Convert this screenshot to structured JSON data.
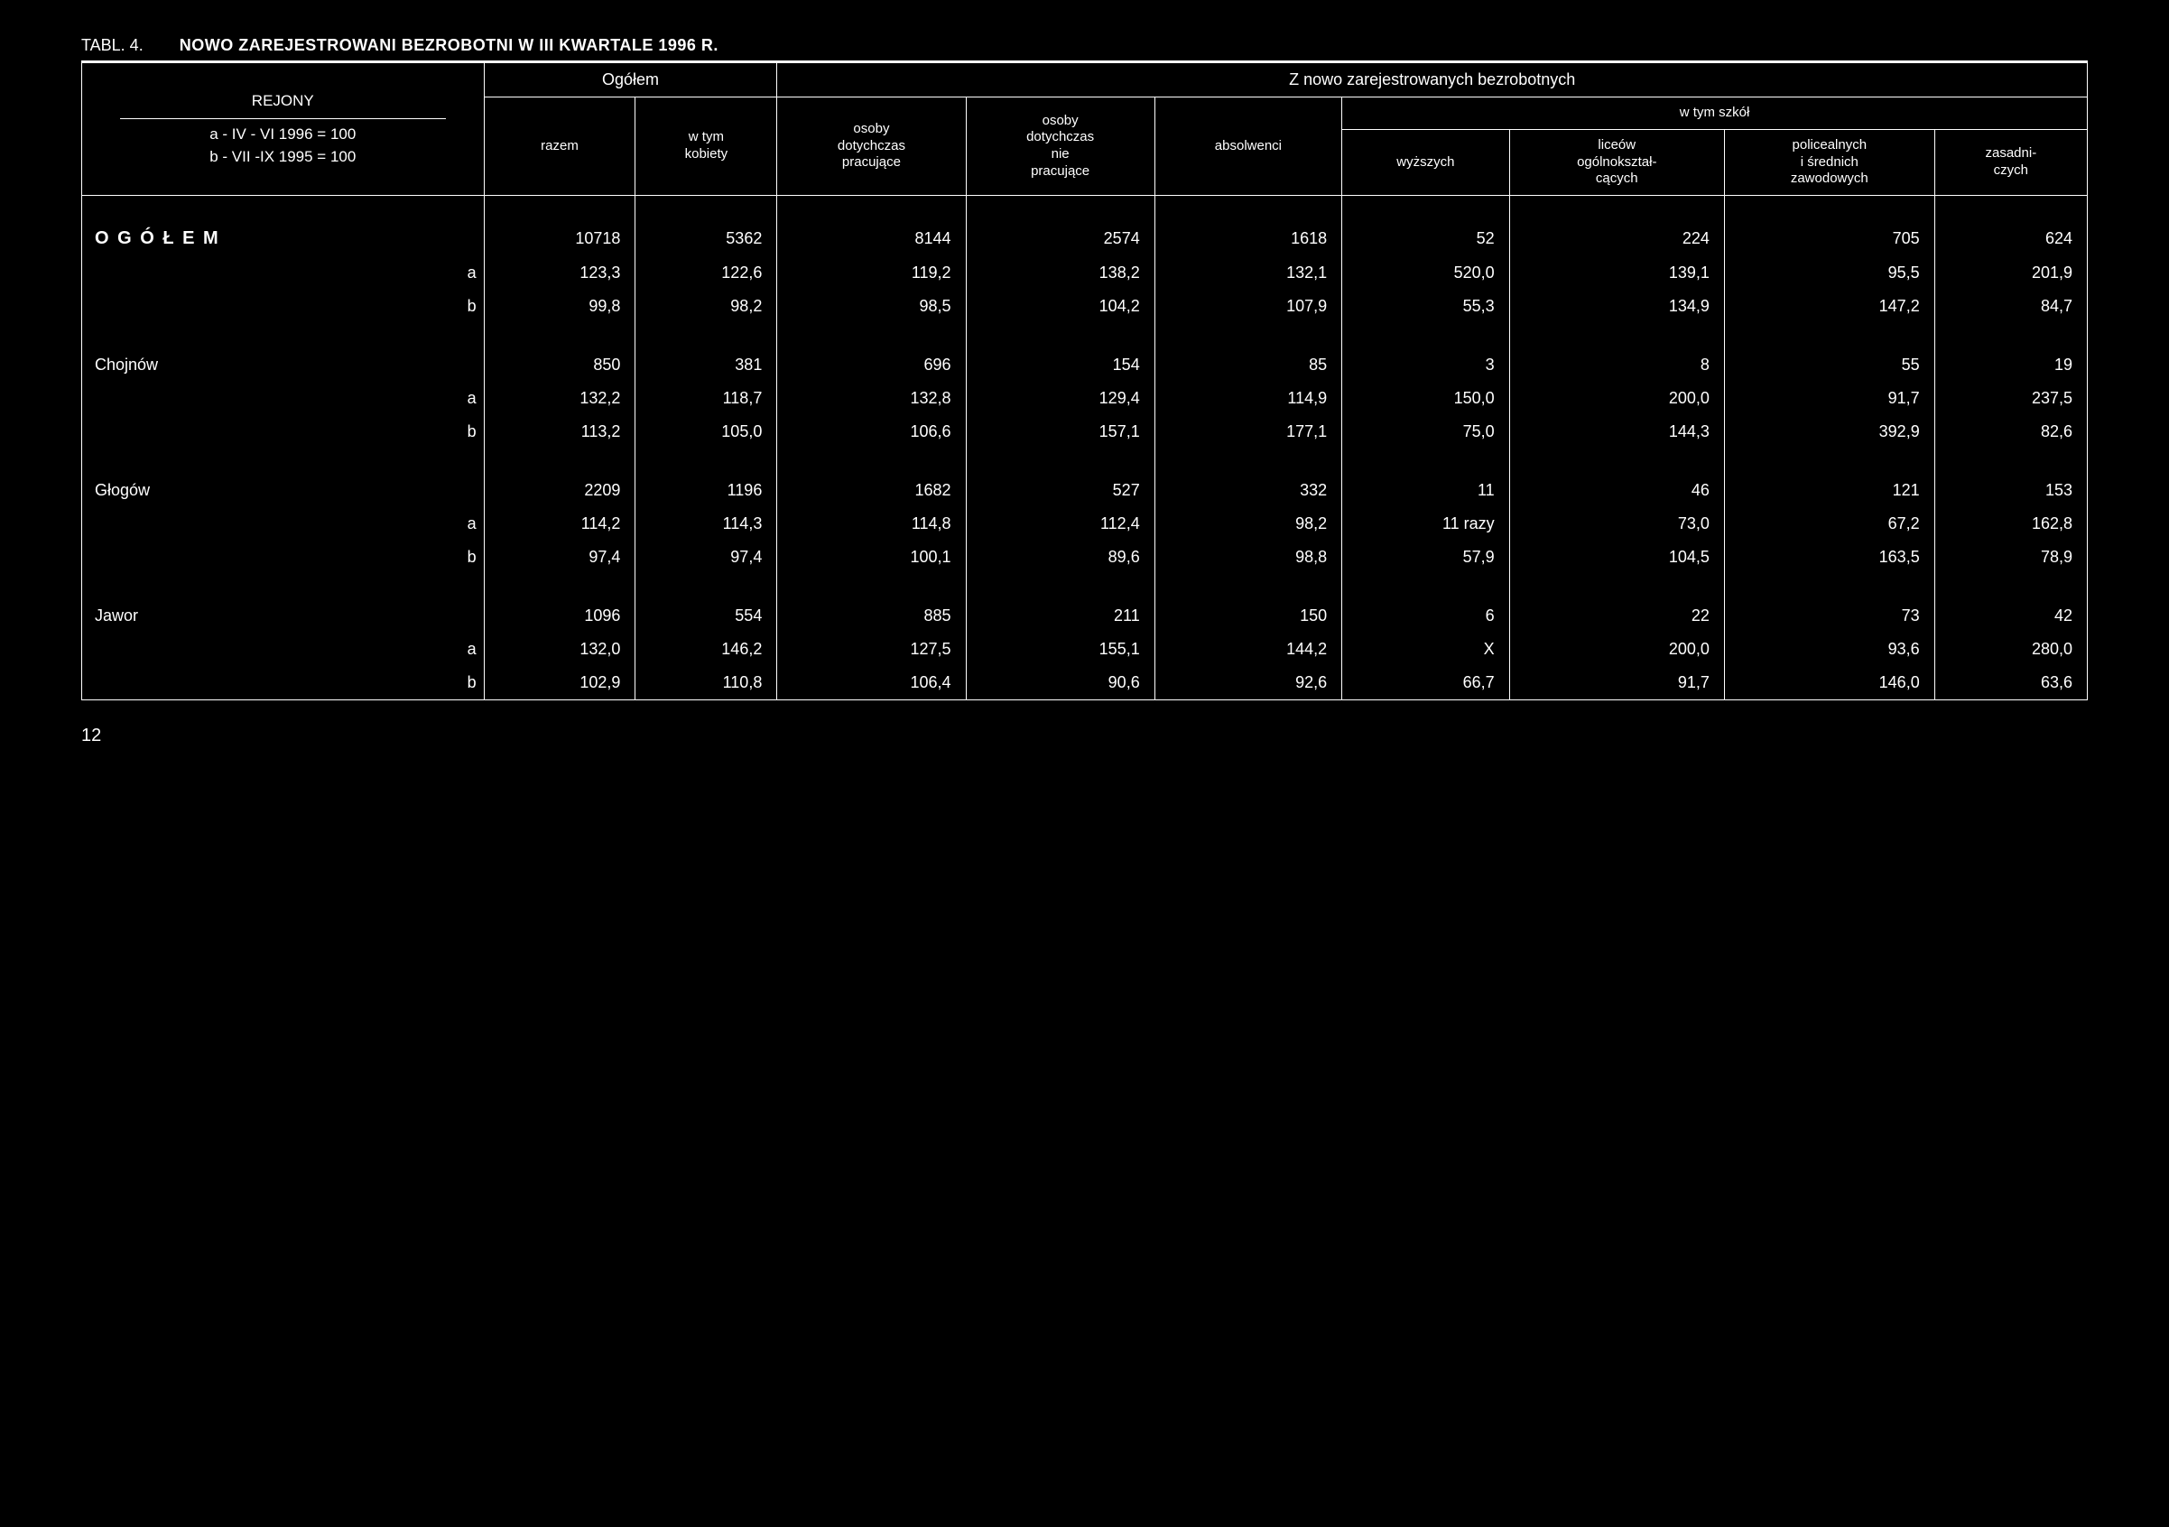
{
  "meta": {
    "table_label": "TABL. 4.",
    "table_title": "NOWO ZAREJESTROWANI BEZROBOTNI W III KWARTALE 1996 R.",
    "page_number": "12"
  },
  "header": {
    "rejony_label": "REJONY",
    "rejony_sub_a": "a - IV - VI 1996 = 100",
    "rejony_sub_b": "b - VII -IX 1995 = 100",
    "ogolem": "Ogółem",
    "z_nowo": "Z nowo zarejestrowanych bezrobotnych",
    "razem": "razem",
    "w_tym_kobiety": "w tym\nkobiety",
    "osoby_dot_prac": "osoby\ndotychczas\npracujące",
    "osoby_dot_nie_prac": "osoby\ndotychczas\nnie\npracujące",
    "absolwenci": "absolwenci",
    "w_tym_szkol": "w tym szkół",
    "wyzszych": "wyższych",
    "liceow": "liceów\nogólnokształ-\ncących",
    "policealnych": "policealnych\ni średnich\nzawodowych",
    "zasadniczych": "zasadni-\nczych"
  },
  "rows": [
    {
      "label": "O G Ó Ł E M",
      "bold": true,
      "main": [
        "10718",
        "5362",
        "8144",
        "2574",
        "1618",
        "52",
        "224",
        "705",
        "624"
      ],
      "a": [
        "123,3",
        "122,6",
        "119,2",
        "138,2",
        "132,1",
        "520,0",
        "139,1",
        "95,5",
        "201,9"
      ],
      "b": [
        "99,8",
        "98,2",
        "98,5",
        "104,2",
        "107,9",
        "55,3",
        "134,9",
        "147,2",
        "84,7"
      ]
    },
    {
      "label": "Chojnów",
      "main": [
        "850",
        "381",
        "696",
        "154",
        "85",
        "3",
        "8",
        "55",
        "19"
      ],
      "a": [
        "132,2",
        "118,7",
        "132,8",
        "129,4",
        "114,9",
        "150,0",
        "200,0",
        "91,7",
        "237,5"
      ],
      "b": [
        "113,2",
        "105,0",
        "106,6",
        "157,1",
        "177,1",
        "75,0",
        "144,3",
        "392,9",
        "82,6"
      ]
    },
    {
      "label": "Głogów",
      "main": [
        "2209",
        "1196",
        "1682",
        "527",
        "332",
        "11",
        "46",
        "121",
        "153"
      ],
      "a": [
        "114,2",
        "114,3",
        "114,8",
        "112,4",
        "98,2",
        "11 razy",
        "73,0",
        "67,2",
        "162,8"
      ],
      "b": [
        "97,4",
        "97,4",
        "100,1",
        "89,6",
        "98,8",
        "57,9",
        "104,5",
        "163,5",
        "78,9"
      ]
    },
    {
      "label": "Jawor",
      "main": [
        "1096",
        "554",
        "885",
        "211",
        "150",
        "6",
        "22",
        "73",
        "42"
      ],
      "a": [
        "132,0",
        "146,2",
        "127,5",
        "155,1",
        "144,2",
        "X",
        "200,0",
        "93,6",
        "280,0"
      ],
      "b": [
        "102,9",
        "110,8",
        "106,4",
        "90,6",
        "92,6",
        "66,7",
        "91,7",
        "146,0",
        "63,6"
      ]
    }
  ],
  "style": {
    "background_color": "#000000",
    "text_color": "#ffffff",
    "border_color": "#ffffff",
    "font_family": "Arial",
    "title_fontsize": 20,
    "header_fontsize": 16,
    "body_fontsize": 18,
    "num_columns": 9,
    "cell_text_align": "right"
  }
}
